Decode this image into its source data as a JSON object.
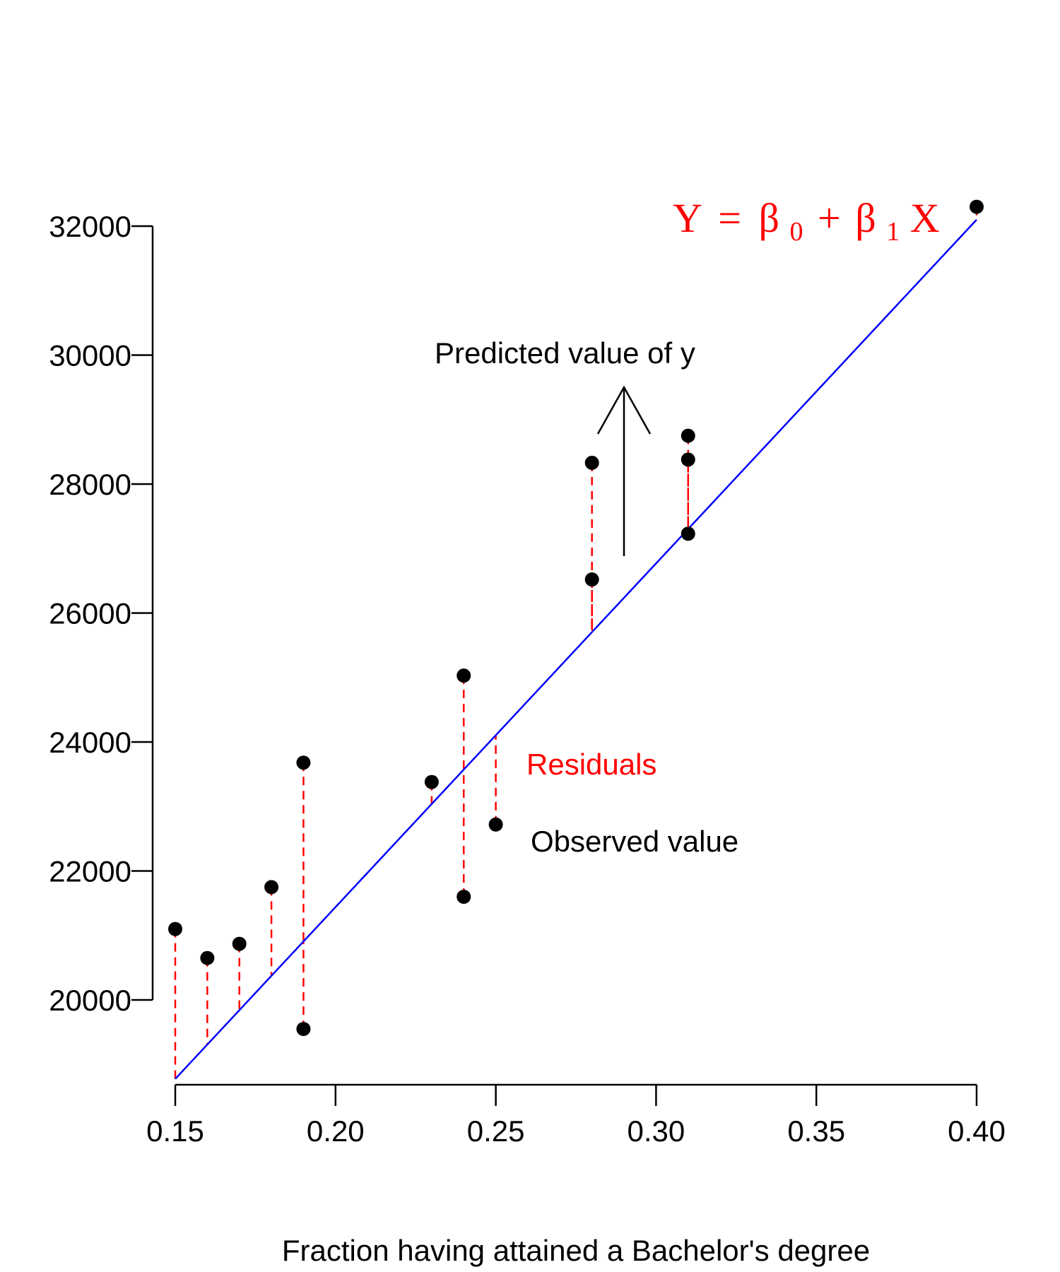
{
  "colors": {
    "points": "#000000",
    "fit_line": "#0000ff",
    "residuals": "#ff0000",
    "equation": "#ff0000",
    "residuals_label": "#ff0000",
    "annotations": "#000000"
  },
  "chart_data": {
    "type": "scatter",
    "xlabel": "Fraction having attained a Bachelor's degree",
    "ylabel": "",
    "xlim": [
      0.15,
      0.4
    ],
    "ylim": [
      20000,
      32000
    ],
    "x_ticks": [
      0.15,
      0.2,
      0.25,
      0.3,
      0.35,
      0.4
    ],
    "x_tick_labels": [
      "0.15",
      "0.20",
      "0.25",
      "0.30",
      "0.35",
      "0.40"
    ],
    "y_ticks": [
      20000,
      22000,
      24000,
      26000,
      28000,
      30000,
      32000
    ],
    "y_tick_labels": [
      "20000",
      "22000",
      "24000",
      "26000",
      "28000",
      "30000",
      "32000"
    ],
    "grid": false,
    "points": [
      {
        "x": 0.15,
        "y": 21100
      },
      {
        "x": 0.16,
        "y": 20650
      },
      {
        "x": 0.17,
        "y": 20870
      },
      {
        "x": 0.18,
        "y": 21750
      },
      {
        "x": 0.19,
        "y": 23680
      },
      {
        "x": 0.19,
        "y": 19550
      },
      {
        "x": 0.23,
        "y": 23380
      },
      {
        "x": 0.24,
        "y": 25030
      },
      {
        "x": 0.24,
        "y": 21600
      },
      {
        "x": 0.25,
        "y": 22720
      },
      {
        "x": 0.28,
        "y": 28330
      },
      {
        "x": 0.28,
        "y": 26520
      },
      {
        "x": 0.31,
        "y": 28750
      },
      {
        "x": 0.31,
        "y": 28380
      },
      {
        "x": 0.31,
        "y": 27230
      },
      {
        "x": 0.4,
        "y": 32300
      }
    ],
    "fit_line": {
      "intercept": 10780,
      "slope": 53300
    },
    "annotations": {
      "equation": {
        "Y": "Y",
        "eq": "=",
        "b0": "β",
        "sub0": "0",
        "plus": "+",
        "b1": "β",
        "sub1": "1",
        "X": "X"
      },
      "predicted_label": "Predicted value of y",
      "residuals_label": "Residuals",
      "observed_label": "Observed value"
    }
  }
}
